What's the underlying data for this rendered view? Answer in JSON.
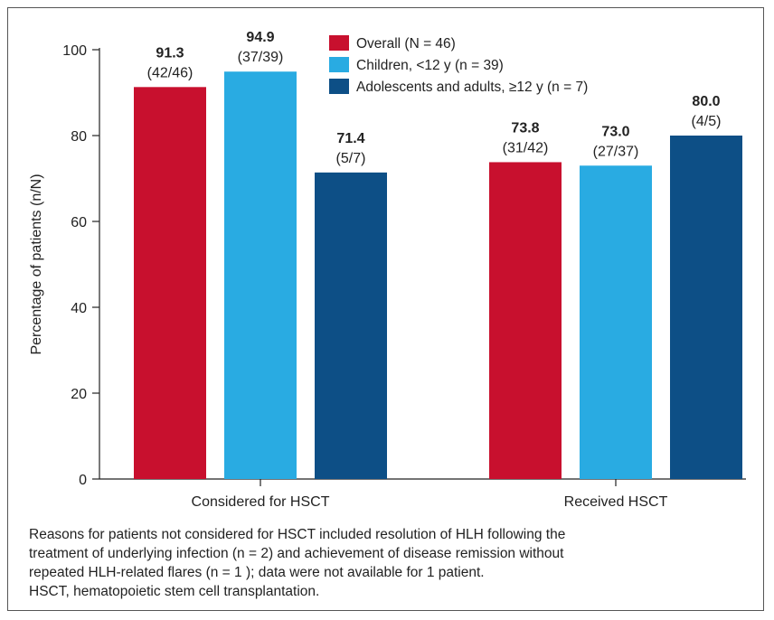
{
  "chart_data": {
    "type": "bar",
    "ylabel": "Percentage of patients (n/N)",
    "ylim": [
      0,
      100
    ],
    "yticks": [
      0,
      20,
      40,
      60,
      80,
      100
    ],
    "categories": [
      "Considered for HSCT",
      "Received HSCT"
    ],
    "series": [
      {
        "name": "Overall (N = 46)",
        "color": "#c8102e",
        "values": [
          91.3,
          73.8
        ],
        "value_labels": [
          "91.3",
          "73.8"
        ],
        "count_labels": [
          "(42/46)",
          "(31/42)"
        ]
      },
      {
        "name": "Children, <12 y (n = 39)",
        "color": "#29abe2",
        "values": [
          94.9,
          73.0
        ],
        "value_labels": [
          "94.9",
          "73.0"
        ],
        "count_labels": [
          "(37/39)",
          "(27/37)"
        ]
      },
      {
        "name": "Adolescents and adults, ≥12 y (n = 7)",
        "color": "#0d4f86",
        "values": [
          71.4,
          80.0
        ],
        "value_labels": [
          "71.4",
          "80.0"
        ],
        "count_labels": [
          "(5/7)",
          "(4/5)"
        ]
      }
    ],
    "legend_position": "top-right",
    "grid": false
  },
  "footnote": {
    "lines": [
      "Reasons for patients not considered for HSCT included resolution of HLH following the",
      "treatment of underlying infection (n = 2) and achievement of disease remission without",
      "repeated HLH-related flares (n = 1 ); data were not available for 1 patient.",
      "HSCT, hematopoietic stem cell transplantation."
    ]
  }
}
